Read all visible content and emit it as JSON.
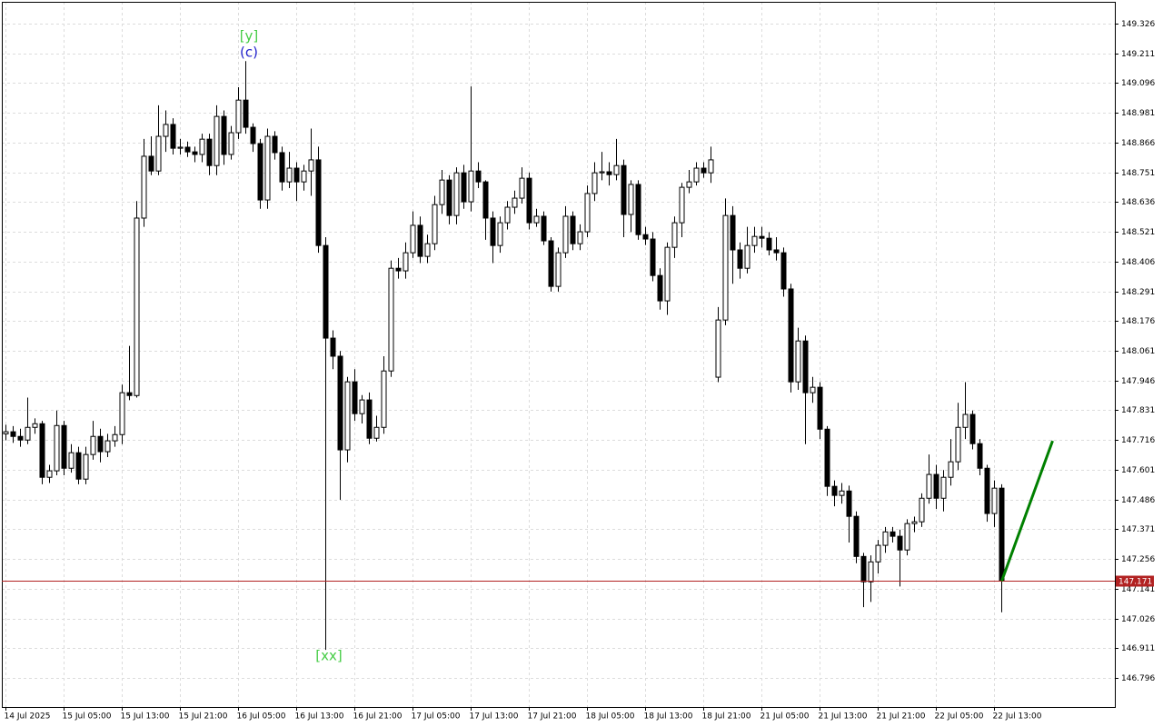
{
  "chart_data": {
    "type": "candlestick",
    "categories": [
      "14 Jul 2025",
      null,
      null,
      null,
      null,
      null,
      null,
      null,
      "15 Jul 05:00",
      null,
      null,
      null,
      null,
      null,
      null,
      null,
      "15 Jul 13:00",
      null,
      null,
      null,
      null,
      null,
      null,
      null,
      "15 Jul 21:00",
      null,
      null,
      null,
      null,
      null,
      null,
      null,
      "16 Jul 05:00",
      null,
      null,
      null,
      null,
      null,
      null,
      null,
      "16 Jul 13:00",
      null,
      null,
      null,
      null,
      null,
      null,
      null,
      "16 Jul 21:00",
      null,
      null,
      null,
      null,
      null,
      null,
      null,
      "17 Jul 05:00",
      null,
      null,
      null,
      null,
      null,
      null,
      null,
      "17 Jul 13:00",
      null,
      null,
      null,
      null,
      null,
      null,
      null,
      "17 Jul 21:00",
      null,
      null,
      null,
      null,
      null,
      null,
      null,
      "18 Jul 05:00",
      null,
      null,
      null,
      null,
      null,
      null,
      null,
      "18 Jul 13:00",
      null,
      null,
      null,
      null,
      null,
      null,
      null,
      "18 Jul 21:00",
      null,
      null,
      null,
      null,
      null,
      null,
      null,
      "21 Jul 05:00",
      null,
      null,
      null,
      null,
      null,
      null,
      null,
      "21 Jul 13:00",
      null,
      null,
      null,
      null,
      null,
      null,
      null,
      "21 Jul 21:00",
      null,
      null,
      null,
      null,
      null,
      null,
      null,
      "22 Jul 05:00",
      null,
      null,
      null,
      null,
      null,
      null,
      null,
      "22 Jul 13:00",
      null
    ],
    "open": [
      147.74,
      147.748,
      147.73,
      147.716,
      147.765,
      147.779,
      147.572,
      147.597,
      147.772,
      147.607,
      147.667,
      147.565,
      147.66,
      147.73,
      147.671,
      147.713,
      147.737,
      147.899,
      147.888,
      148.574,
      148.813,
      148.756,
      148.89,
      148.936,
      148.844,
      148.848,
      148.83,
      148.82,
      148.879,
      148.777,
      148.967,
      148.82,
      148.904,
      149.03,
      148.925,
      148.862,
      148.644,
      148.89,
      148.827,
      148.714,
      148.767,
      148.714,
      148.756,
      148.799,
      148.468,
      148.11,
      148.04,
      147.678,
      147.941,
      147.818,
      147.871,
      147.723,
      147.765,
      147.983,
      148.38,
      148.37,
      148.44,
      148.546,
      148.426,
      148.475,
      148.626,
      148.721,
      148.584,
      148.749,
      148.637,
      148.756,
      148.714,
      148.574,
      148.468,
      148.556,
      148.616,
      148.651,
      148.728,
      148.556,
      148.581,
      148.486,
      148.31,
      148.44,
      148.581,
      148.475,
      148.521,
      148.669,
      148.749,
      148.753,
      148.742,
      148.777,
      148.588,
      148.704,
      148.51,
      148.493,
      148.352,
      148.254,
      148.461,
      148.556,
      148.693,
      148.714,
      148.767,
      148.749,
      147.959,
      148.18,
      148.584,
      148.451,
      148.38,
      148.468,
      148.503,
      148.496,
      148.451,
      148.44,
      148.3,
      147.941,
      148.099,
      147.899,
      147.92,
      147.758,
      147.537,
      147.502,
      147.519,
      147.421,
      147.266,
      147.168,
      147.245,
      147.309,
      147.361,
      147.344,
      147.291,
      147.393,
      147.4,
      147.491,
      147.583,
      147.491,
      147.572,
      147.632,
      147.765,
      147.815,
      147.702,
      147.607,
      147.432,
      147.53
    ],
    "high": [
      147.775,
      147.77,
      147.76,
      147.88,
      147.8,
      147.79,
      147.62,
      147.83,
      147.79,
      147.7,
      147.69,
      147.69,
      147.79,
      147.76,
      147.74,
      147.77,
      147.93,
      148.08,
      148.64,
      148.88,
      148.89,
      149.01,
      148.99,
      148.96,
      148.88,
      148.87,
      148.85,
      148.9,
      148.9,
      149.01,
      148.99,
      148.93,
      149.08,
      149.181,
      148.94,
      148.88,
      148.92,
      148.91,
      148.85,
      148.83,
      148.79,
      148.78,
      148.92,
      148.85,
      148.5,
      148.14,
      148.06,
      147.96,
      147.99,
      147.89,
      147.9,
      147.81,
      148.04,
      148.41,
      148.42,
      148.48,
      148.6,
      148.58,
      148.51,
      148.66,
      148.76,
      148.74,
      148.77,
      148.78,
      149.083,
      148.79,
      148.72,
      148.6,
      148.58,
      148.64,
      148.68,
      148.77,
      148.75,
      148.61,
      148.6,
      148.5,
      148.46,
      148.62,
      148.6,
      148.55,
      148.7,
      148.79,
      148.83,
      148.79,
      148.88,
      148.8,
      148.72,
      148.72,
      148.54,
      148.52,
      148.38,
      148.48,
      148.58,
      148.71,
      148.76,
      148.79,
      148.79,
      148.85,
      148.23,
      148.65,
      148.62,
      148.48,
      148.54,
      148.54,
      148.54,
      148.52,
      148.5,
      148.46,
      148.32,
      148.15,
      148.12,
      147.96,
      147.94,
      147.77,
      147.56,
      147.55,
      147.54,
      147.44,
      147.28,
      147.27,
      147.33,
      147.38,
      147.38,
      147.37,
      147.41,
      147.42,
      147.51,
      147.66,
      147.62,
      147.6,
      147.72,
      147.86,
      147.94,
      147.83,
      147.72,
      147.62,
      147.56,
      147.545
    ],
    "low": [
      147.715,
      147.705,
      147.69,
      147.7,
      147.74,
      147.545,
      147.55,
      147.58,
      147.58,
      147.59,
      147.545,
      147.545,
      147.64,
      147.63,
      147.65,
      147.69,
      147.7,
      147.87,
      147.88,
      148.54,
      148.74,
      148.74,
      148.83,
      148.82,
      148.82,
      148.81,
      148.79,
      148.79,
      148.74,
      148.74,
      148.78,
      148.8,
      148.88,
      148.9,
      148.83,
      148.61,
      148.61,
      148.8,
      148.68,
      148.69,
      148.64,
      148.68,
      148.66,
      148.44,
      146.905,
      147.99,
      147.485,
      147.63,
      147.79,
      147.78,
      147.7,
      147.71,
      147.74,
      147.96,
      148.34,
      148.34,
      148.42,
      148.4,
      148.4,
      148.45,
      148.59,
      148.55,
      148.55,
      148.61,
      148.6,
      148.69,
      148.49,
      148.4,
      148.44,
      148.53,
      148.59,
      148.63,
      148.53,
      148.54,
      148.47,
      148.29,
      148.29,
      148.42,
      148.45,
      148.45,
      148.5,
      148.64,
      148.72,
      148.7,
      148.72,
      148.5,
      148.52,
      148.49,
      148.47,
      148.33,
      148.22,
      148.2,
      148.42,
      148.5,
      148.67,
      148.7,
      148.73,
      148.71,
      147.94,
      148.16,
      148.32,
      148.34,
      148.36,
      148.44,
      148.46,
      148.43,
      148.41,
      148.27,
      147.9,
      147.91,
      147.7,
      147.86,
      147.72,
      147.5,
      147.46,
      147.47,
      147.32,
      147.24,
      147.07,
      147.09,
      147.2,
      147.28,
      147.32,
      147.15,
      147.27,
      147.36,
      147.38,
      147.47,
      147.45,
      147.44,
      147.54,
      147.6,
      147.72,
      147.68,
      147.58,
      147.4,
      147.38,
      147.05
    ],
    "close": [
      147.748,
      147.73,
      147.716,
      147.765,
      147.779,
      147.572,
      147.597,
      147.772,
      147.607,
      147.667,
      147.565,
      147.66,
      147.73,
      147.671,
      147.713,
      147.737,
      147.899,
      147.888,
      148.574,
      148.813,
      148.756,
      148.89,
      148.936,
      148.844,
      148.848,
      148.83,
      148.82,
      148.879,
      148.777,
      148.967,
      148.82,
      148.904,
      149.03,
      148.925,
      148.862,
      148.644,
      148.89,
      148.827,
      148.714,
      148.767,
      148.714,
      148.756,
      148.799,
      148.468,
      148.11,
      148.04,
      147.678,
      147.941,
      147.818,
      147.871,
      147.723,
      147.765,
      147.983,
      148.38,
      148.37,
      148.44,
      148.546,
      148.426,
      148.475,
      148.626,
      148.721,
      148.584,
      148.749,
      148.637,
      148.756,
      148.714,
      148.574,
      148.468,
      148.556,
      148.616,
      148.651,
      148.728,
      148.556,
      148.581,
      148.486,
      148.31,
      148.44,
      148.581,
      148.475,
      148.521,
      148.669,
      148.749,
      148.753,
      148.742,
      148.777,
      148.588,
      148.704,
      148.51,
      148.493,
      148.352,
      148.254,
      148.461,
      148.556,
      148.693,
      148.714,
      148.767,
      148.749,
      148.799,
      148.18,
      148.584,
      148.451,
      148.38,
      148.468,
      148.503,
      148.496,
      148.451,
      148.44,
      148.3,
      147.941,
      148.099,
      147.899,
      147.92,
      147.758,
      147.537,
      147.502,
      147.519,
      147.421,
      147.266,
      147.168,
      147.245,
      147.309,
      147.361,
      147.344,
      147.291,
      147.393,
      147.4,
      147.491,
      147.583,
      147.491,
      147.572,
      147.632,
      147.765,
      147.815,
      147.702,
      147.607,
      147.432,
      147.53,
      147.171
    ],
    "bull_color": "#ffffff",
    "bear_color": "#000000",
    "ylim": [
      146.684,
      149.41
    ],
    "yticks": [
      149.326,
      149.211,
      149.096,
      148.981,
      148.866,
      148.751,
      148.636,
      148.521,
      148.406,
      148.291,
      148.176,
      148.061,
      147.946,
      147.831,
      147.716,
      147.601,
      147.486,
      147.371,
      147.256,
      147.141,
      147.026,
      146.911,
      146.796
    ],
    "grid": true,
    "current_price": 147.171,
    "current_price_color": "#b22222",
    "forecast": {
      "color": "#008000",
      "values": [
        147.171,
        147.713
      ]
    },
    "annotations": [
      {
        "text": "[y]",
        "color": "#44cc44"
      },
      {
        "text": "(c)",
        "color": "#2222cc"
      },
      {
        "text": "[xx]",
        "color": "#44cc44"
      }
    ]
  }
}
